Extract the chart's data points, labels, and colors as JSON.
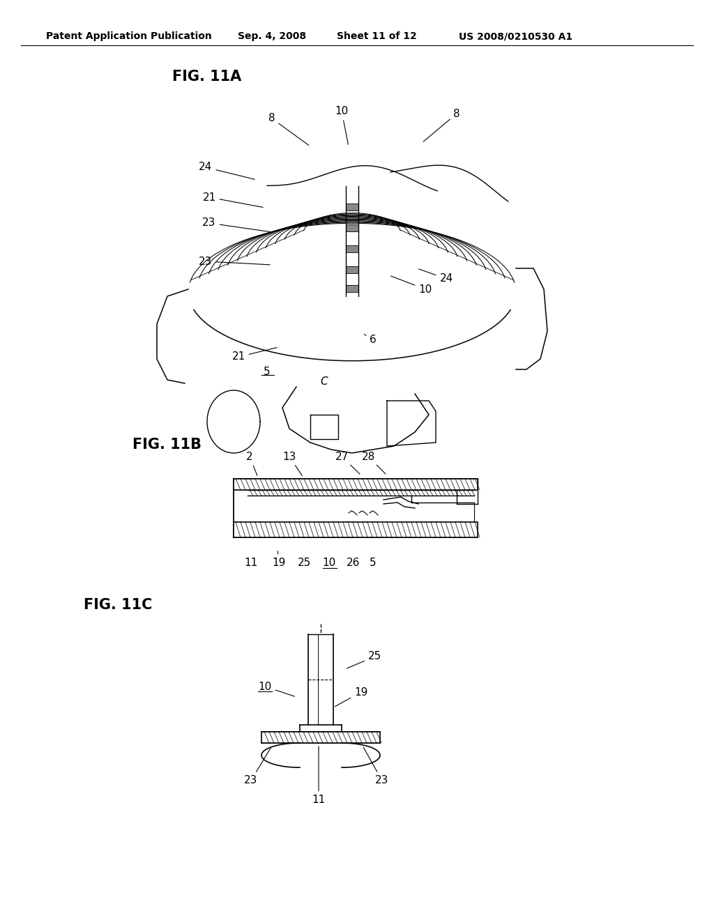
{
  "bg_color": "#ffffff",
  "header_text": "Patent Application Publication",
  "header_date": "Sep. 4, 2008",
  "header_sheet": "Sheet 11 of 12",
  "header_patent": "US 2008/0210530 A1",
  "fig11a_label": "FIG. 11A",
  "fig11b_label": "FIG. 11B",
  "fig11c_label": "FIG. 11C",
  "font_size_header": 10,
  "font_size_fig_label": 15,
  "font_size_annotation": 11
}
